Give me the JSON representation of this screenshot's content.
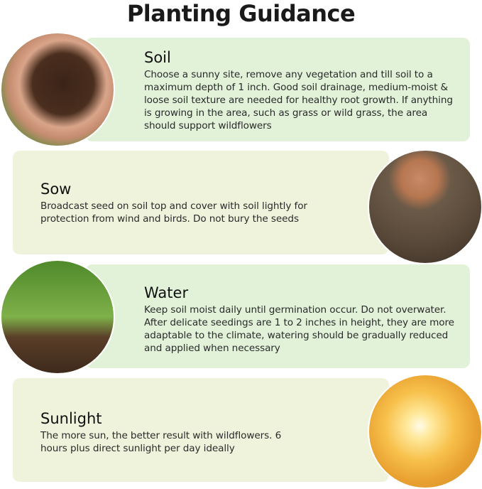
{
  "title": "Planting Guidance",
  "sections": [
    {
      "title": "Soil",
      "body": "Choose a sunny site, remove any vegetation and till soil to a maximum depth of 1 inch. Good soil drainage, medium-moist & loose soil texture are needed for healthy root growth. If anything is growing in the area, such as grass or wild grass, the area should support wildflowers",
      "image": "hands-holding-soil",
      "color": "#e1f2d9"
    },
    {
      "title": "Sow",
      "body": "Broadcast seed on soil top and cover with soil lightly for protection from wind and birds. Do not bury the seeds",
      "image": "hand-sowing-seed",
      "color": "#eff3dc"
    },
    {
      "title": "Water",
      "body": "Keep soil moist daily until germination occur. Do not overwater. After delicate seedings are 1 to 2 inches in height, they are more adaptable to the climate, watering should be gradually reduced and applied when necessary",
      "image": "watering-seedling",
      "color": "#e1f2d9"
    },
    {
      "title": "Sunlight",
      "body": "The more sun, the better result with wildflowers. 6 hours plus direct sunlight per day ideally",
      "image": "sunlight",
      "color": "#eff3dc"
    }
  ]
}
